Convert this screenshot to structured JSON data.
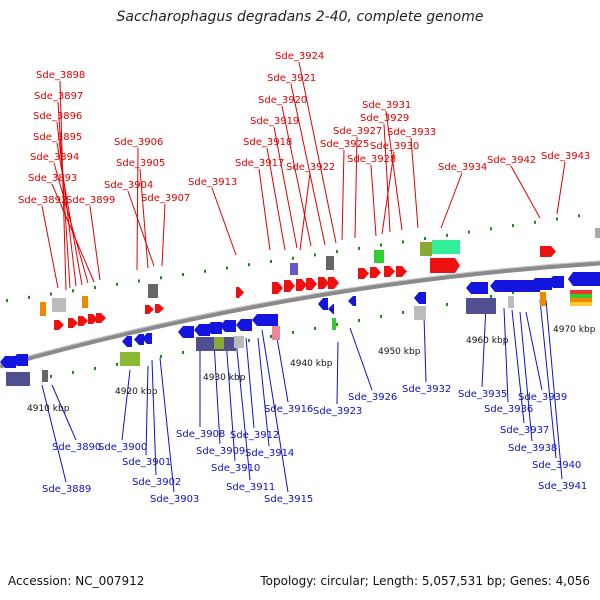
{
  "title": "Saccharophagus degradans 2-40, complete genome",
  "footer": {
    "accession": "Accession: NC_007912",
    "summary": "Topology: circular; Length: 5,057,531 bp; Genes: 4,056"
  },
  "colors": {
    "forward_strand": "#ee1111",
    "reverse_strand": "#1515e0",
    "label_forward": "#e00000",
    "label_reverse": "#1010c8",
    "backbone": "#888888",
    "tick_green": "#1a8a1a"
  },
  "scale_labels": [
    "4910 kbp",
    "4920 kbp",
    "4930 kbp",
    "4940 kbp",
    "4950 kbp",
    "4960 kbp",
    "4970 kbp"
  ],
  "genes_forward": [
    "Sde_3898",
    "Sde_3897",
    "Sde_3896",
    "Sde_3895",
    "Sde_3894",
    "Sde_3893",
    "Sde_3892",
    "Sde_3899",
    "Sde_3906",
    "Sde_3905",
    "Sde_3904",
    "Sde_3907",
    "Sde_3913",
    "Sde_3924",
    "Sde_3921",
    "Sde_3920",
    "Sde_3919",
    "Sde_3918",
    "Sde_3917",
    "Sde_3922",
    "Sde_3925",
    "Sde_3927",
    "Sde_3928",
    "Sde_3931",
    "Sde_3929",
    "Sde_3930",
    "Sde_3933",
    "Sde_3934",
    "Sde_3942",
    "Sde_3943"
  ],
  "genes_reverse": [
    "Sde_3890",
    "Sde_3889",
    "Sde_3900",
    "Sde_3901",
    "Sde_3902",
    "Sde_3903",
    "Sde_3908",
    "Sde_3909",
    "Sde_3910",
    "Sde_3911",
    "Sde_3912",
    "Sde_3914",
    "Sde_3915",
    "Sde_3916",
    "Sde_3923",
    "Sde_3926",
    "Sde_3932",
    "Sde_3935",
    "Sde_3936",
    "Sde_3937",
    "Sde_3938",
    "Sde_3939",
    "Sde_3940",
    "Sde_3941"
  ]
}
